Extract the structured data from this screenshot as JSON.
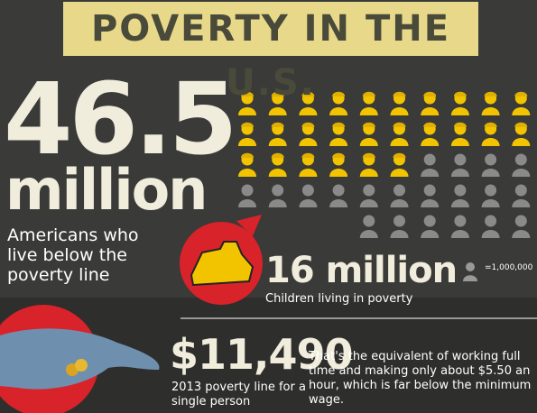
{
  "header": {
    "title": "POVERTY IN THE U.S."
  },
  "main_stat": {
    "number": "46.5",
    "unit": "million",
    "caption": "Americans who live below the poverty line"
  },
  "children_stat": {
    "number": "16 million",
    "caption": "Children living in poverty"
  },
  "icons": {
    "total": 46,
    "highlighted": 26,
    "columns": 10,
    "legend": "=1,000,000"
  },
  "poverty_line": {
    "amount": "$11,490",
    "caption": "2013 poverty line for a single person",
    "note": "That's the equivalent of working full time and making only about $5.50 an hour, which is far below the minimum wage."
  }
}
